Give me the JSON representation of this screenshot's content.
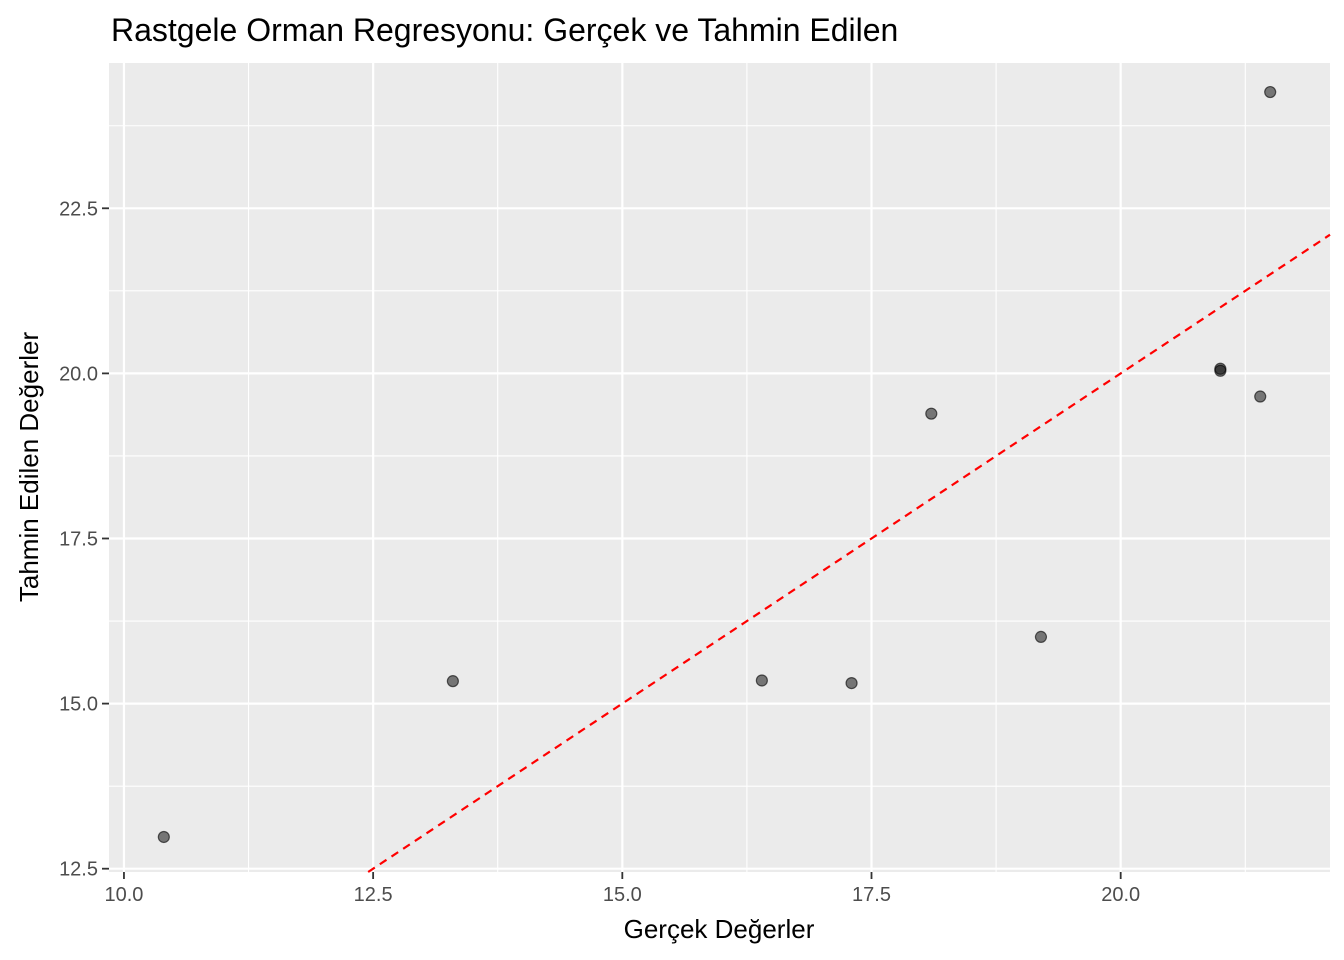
{
  "chart_data": {
    "type": "scatter",
    "title": "Rastgele Orman Regresyonu: Gerçek ve Tahmin Edilen",
    "xlabel": "Gerçek Değerler",
    "ylabel": "Tahmin Edilen Değerler",
    "xlim": [
      9.85,
      22.1
    ],
    "ylim": [
      12.45,
      24.7
    ],
    "x_ticks": [
      10.0,
      12.5,
      15.0,
      17.5,
      20.0
    ],
    "x_tick_labels": [
      "10.0",
      "12.5",
      "15.0",
      "17.5",
      "20.0"
    ],
    "y_ticks": [
      12.5,
      15.0,
      17.5,
      20.0,
      22.5
    ],
    "y_tick_labels": [
      "12.5",
      "15.0",
      "17.5",
      "20.0",
      "22.5"
    ],
    "grid": true,
    "points": [
      {
        "x": 10.4,
        "y": 12.98
      },
      {
        "x": 13.3,
        "y": 15.34
      },
      {
        "x": 16.4,
        "y": 15.35
      },
      {
        "x": 17.3,
        "y": 15.31
      },
      {
        "x": 18.1,
        "y": 19.39
      },
      {
        "x": 19.2,
        "y": 16.01
      },
      {
        "x": 21.0,
        "y": 20.07
      },
      {
        "x": 21.0,
        "y": 20.04
      },
      {
        "x": 21.4,
        "y": 19.65
      },
      {
        "x": 21.5,
        "y": 24.26
      }
    ],
    "reference_line": {
      "type": "identity",
      "slope": 1,
      "intercept": 0,
      "style": "dashed",
      "color": "#ff0000"
    },
    "point_color": "#000000",
    "panel_background": "#ebebeb",
    "grid_color": "#ffffff"
  }
}
